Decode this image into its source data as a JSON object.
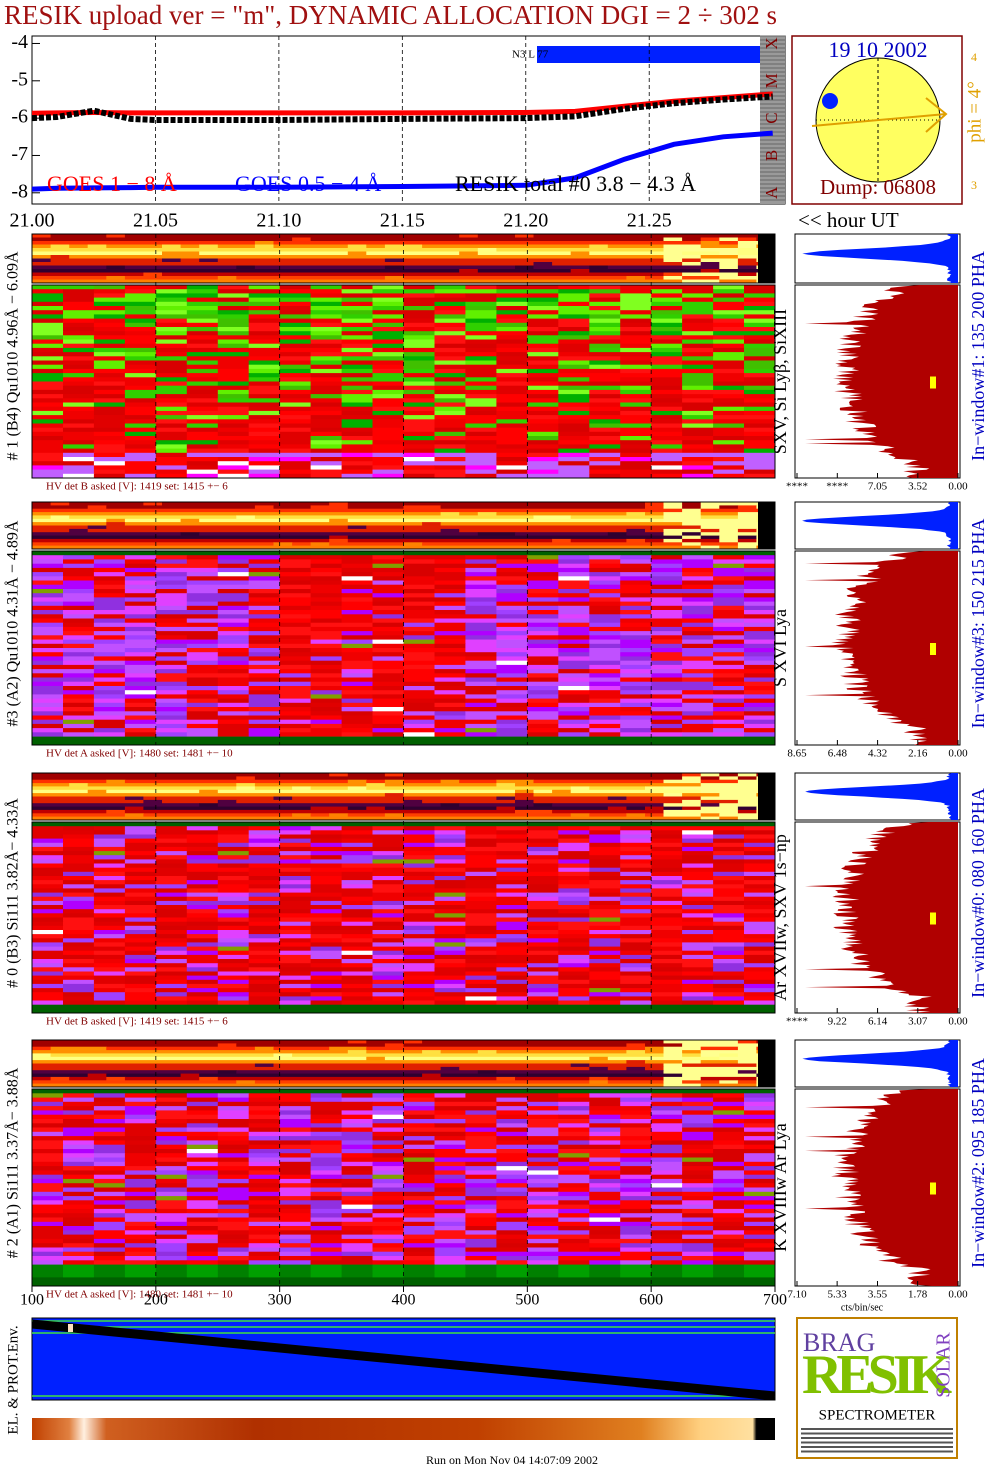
{
  "title": "RESIK upload ver = \"m\", DYNAMIC ALLOCATION  DGI =   2 ÷ 302 s",
  "chart_data": {
    "type": "line",
    "x": [
      21.0,
      21.01,
      21.025,
      21.04,
      21.05,
      21.1,
      21.15,
      21.2,
      21.22,
      21.24,
      21.26,
      21.28,
      21.3
    ],
    "xlim": [
      21.0,
      21.305
    ],
    "xticks": [
      {
        "value": 21.0,
        "label": "21.00"
      },
      21.05,
      {
        "value": 21.1,
        "label": "21.10"
      },
      21.15,
      {
        "value": 21.2,
        "label": "21.20"
      },
      21.25
    ],
    "ylim": [
      -8.3,
      -3.8
    ],
    "yticks": [
      -4,
      -5,
      -6,
      -7,
      -8
    ],
    "grid": true,
    "x_unit_label": "<< hour UT",
    "event_label": "N3 L 77",
    "series": [
      {
        "name": "GOES 1 − 8 Å",
        "color": "#ff0000",
        "values": [
          -5.87,
          -5.86,
          -5.85,
          -5.86,
          -5.86,
          -5.86,
          -5.86,
          -5.85,
          -5.82,
          -5.68,
          -5.55,
          -5.45,
          -5.35
        ]
      },
      {
        "name": "GOES 0.5 − 4 Å",
        "color": "#0000ff",
        "values": [
          -7.9,
          -7.88,
          -7.87,
          -7.86,
          -7.85,
          -7.85,
          -7.83,
          -7.8,
          -7.6,
          -7.1,
          -6.7,
          -6.5,
          -6.4
        ]
      },
      {
        "name": "RESIK total #0  3.8 − 4.3 Å",
        "color": "#000000",
        "values": [
          -6.0,
          -5.97,
          -5.8,
          -6.02,
          -6.05,
          -6.05,
          -6.02,
          -6.0,
          -5.95,
          -5.75,
          -5.6,
          -5.5,
          -5.42
        ]
      }
    ],
    "goes_classes": [
      {
        "label": "X",
        "value": -4
      },
      {
        "label": "M",
        "value": -5
      },
      {
        "label": "C",
        "value": -6
      },
      {
        "label": "B",
        "value": -7
      },
      {
        "label": "A",
        "value": -8
      }
    ]
  },
  "sun_panel": {
    "date": "19 10 2002",
    "phi_label": "phi =  4°",
    "scale_top": "4",
    "scale_bottom": "3",
    "dump": "Dump: 06808"
  },
  "channel_axis": {
    "xlim": [
      100,
      700
    ],
    "xticks": [
      100,
      200,
      300,
      400,
      500,
      600,
      700
    ]
  },
  "detectors": [
    {
      "label": "# 1 (B4) Qu1010 4.96Å − 6.09Å",
      "line_label": "SXV, Si Lyβ, SiXIII",
      "window_label": "In−window#1:  135 200 PHA",
      "hv_label": "HV det B asked [V]:  1419 set:  1415 +−   6",
      "histogram": {
        "xlim": [
          14.1,
          0
        ],
        "xticks": [
          {
            "value": 14.1,
            "label": "****"
          },
          {
            "value": 10.57,
            "label": "****"
          },
          7.05,
          3.52,
          {
            "value": 0,
            "label": "0.00"
          }
        ]
      }
    },
    {
      "label": "#3 (A2) Qu1010  4.31Å − 4.89Å",
      "line_label": "S XVI Lya",
      "window_label": "In−window#3:  150 215 PHA",
      "hv_label": "HV det A asked [V]:  1480 set:  1481 +−   10",
      "histogram": {
        "xlim": [
          8.65,
          0
        ],
        "xticks": [
          8.65,
          6.48,
          4.32,
          2.16,
          {
            "value": 0,
            "label": "0.00"
          }
        ]
      }
    },
    {
      "label": "# 0 (B3) Si111  3.82Å− 4.33Å",
      "line_label": "Ar XVIIw,  SXV 1s−np",
      "window_label": "In−window#0:  080 160 PHA",
      "hv_label": "HV det B asked [V]:  1419 set:  1415 +−   6",
      "histogram": {
        "xlim": [
          12.29,
          0
        ],
        "xticks": [
          {
            "value": 12.29,
            "label": "****"
          },
          9.22,
          6.14,
          3.07,
          {
            "value": 0,
            "label": "0.00"
          }
        ]
      }
    },
    {
      "label": "# 2 (A1) Si111  3.37Å− 3.88Å",
      "line_label": "K XVIIIw  Ar Lya",
      "window_label": "In−window#2:  095 185 PHA",
      "hv_label": "HV det A asked [V]:  1480 set:  1481 +−   10",
      "histogram": {
        "xlim": [
          7.1,
          0
        ],
        "xticks": [
          {
            "value": 7.1,
            "label": "7.10"
          },
          5.33,
          3.55,
          1.78,
          {
            "value": 0,
            "label": "0.00"
          }
        ]
      }
    }
  ],
  "histogram_unit": "cts/bin/sec",
  "environment_label": "EL. & PROT.Env.",
  "logo": {
    "brag": "BRAG",
    "resik": "RESIK",
    "solar": "SOLAR",
    "subtitle": "SPECTROMETER"
  },
  "footer": "Run on Mon Nov 04 14:07:09 2002"
}
